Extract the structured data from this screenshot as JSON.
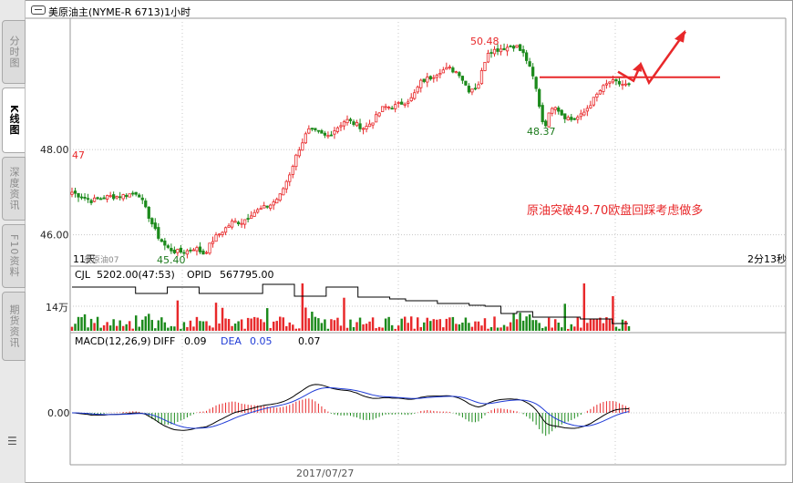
{
  "title_bar": {
    "text": "美原油主(NYME-R 6713)1小时"
  },
  "side_tabs": [
    {
      "label": "分时图",
      "active": false
    },
    {
      "label": "K线图",
      "active": true
    },
    {
      "label": "深度资讯",
      "active": false
    },
    {
      "label": "F10资料",
      "active": false
    },
    {
      "label": "期货资讯",
      "active": false
    }
  ],
  "chart_data": [
    {
      "type": "candlestick",
      "panel": "price",
      "yticks": [
        "48.00",
        "46.00"
      ],
      "ylim": [
        45.35,
        50.7
      ],
      "annotations": {
        "high_label": "50.48",
        "left_label": "47",
        "low_label": "45.40",
        "mid_low_label": "48.37",
        "comment": "原油突破49.70欧盘回踩考虑做多",
        "bottom_left": "11天",
        "contract": "美原油07",
        "countdown": "2分13秒"
      },
      "resistance_line": 49.7,
      "close_path": [
        47.0,
        46.9,
        46.8,
        46.85,
        46.9,
        46.9,
        46.95,
        47.0,
        46.5,
        46.0,
        45.7,
        45.6,
        45.6,
        45.7,
        45.55,
        45.9,
        46.1,
        46.3,
        46.3,
        46.5,
        46.6,
        46.7,
        46.9,
        47.4,
        48.0,
        48.45,
        48.4,
        48.3,
        48.5,
        48.7,
        48.6,
        48.5,
        48.7,
        49.0,
        49.0,
        49.1,
        49.2,
        49.6,
        49.7,
        49.85,
        49.9,
        49.8,
        49.4,
        49.5,
        50.3,
        50.35,
        50.4,
        50.45,
        50.2,
        49.6,
        48.5,
        49.1,
        48.8,
        48.7,
        48.8,
        49.1,
        49.4,
        49.6,
        49.55,
        49.5
      ],
      "x_date": "2017/07/27"
    },
    {
      "type": "bar",
      "panel": "volume",
      "indicator": "CJL",
      "values_text": {
        "cjl": "5202.00(47:53)",
        "opid_label": "OPID",
        "opid": "567795.00"
      },
      "ytick": "14万"
    },
    {
      "type": "line",
      "panel": "macd",
      "indicator": "MACD(12,26,9)",
      "diff_label": "DIFF",
      "diff": "0.09",
      "dea_label": "DEA",
      "dea": "0.05",
      "macd": "0.07",
      "ytick": "0.00"
    }
  ],
  "colors": {
    "up": "#e8282a",
    "down": "#1c8a1c",
    "grid": "#c8c8c8",
    "diff": "#000000",
    "dea": "#1f3bd6",
    "annot": "#e8282a",
    "low": "#1c7a1c"
  }
}
